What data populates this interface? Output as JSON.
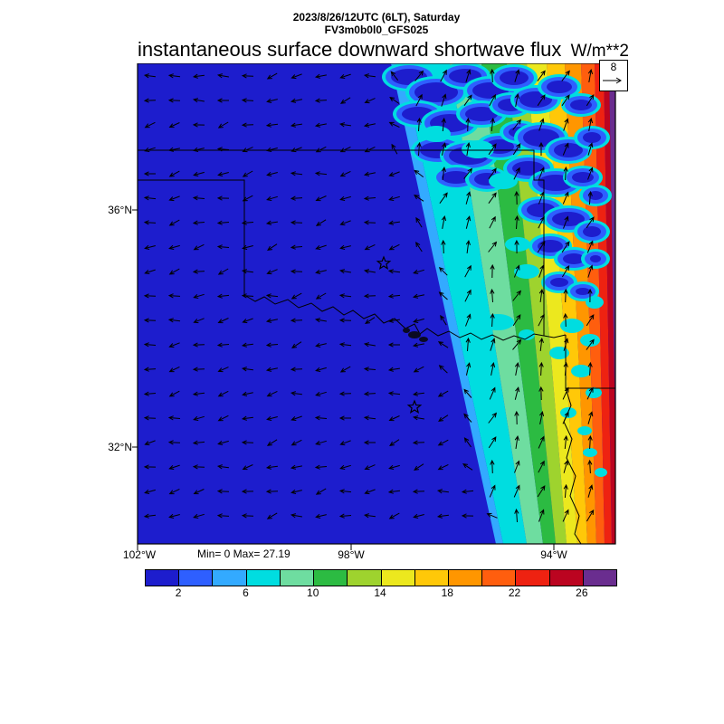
{
  "header": {
    "datetime": "2023/8/26/12UTC (6LT), Saturday",
    "model": "FV3m0b0l0_GFS025"
  },
  "title": {
    "text": "instantaneous surface downward shortwave flux",
    "units": "W/m**2"
  },
  "stats": {
    "minmax": "Min= 0 Max= 27.19"
  },
  "ref_box": {
    "value": "8"
  },
  "axes": {
    "lat": [
      {
        "label": "36°N"
      },
      {
        "label": "32°N"
      }
    ],
    "lon": [
      {
        "label": "102°W"
      },
      {
        "label": "98°W"
      },
      {
        "label": "94°W"
      }
    ]
  },
  "chart_data": {
    "type": "heatmap",
    "title": "instantaneous surface downward shortwave flux",
    "units": "W/m**2",
    "valid_time": "2023/8/26/12UTC (6LT), Saturday",
    "model_run": "FV3m0b0l0_GFS025",
    "min": 0,
    "max": 27.19,
    "wind_reference": 8,
    "lat_ticks": [
      "36°N",
      "32°N"
    ],
    "lon_ticks": [
      "102°W",
      "98°W",
      "94°W"
    ],
    "colorbar": {
      "levels": [
        0,
        2,
        4,
        6,
        8,
        10,
        12,
        14,
        16,
        18,
        20,
        22,
        24,
        26,
        28
      ],
      "tick_labels": [
        2,
        6,
        10,
        14,
        18,
        22,
        26
      ],
      "colors": [
        "#1d1dcd",
        "#2e5fff",
        "#33aaff",
        "#00dde0",
        "#6eddA0",
        "#2cbb42",
        "#9ed32e",
        "#ece81e",
        "#ffc808",
        "#ff9600",
        "#ff5e0e",
        "#ee2211",
        "#bb0420",
        "#6a2d8f"
      ]
    },
    "field_summary": "Flux near 0-2 W/m**2 over the western (night-side) area; diagonal sunrise gradient bands increase eastward to >26 W/m**2 at the eastern edge, with scattered low-flux cloud patches over the northeast quadrant.",
    "wind_field_summary": "Surface wind vectors roughly westward over the low-flux region, turning north-northeastward near the eastern edge; reference vector 8."
  }
}
